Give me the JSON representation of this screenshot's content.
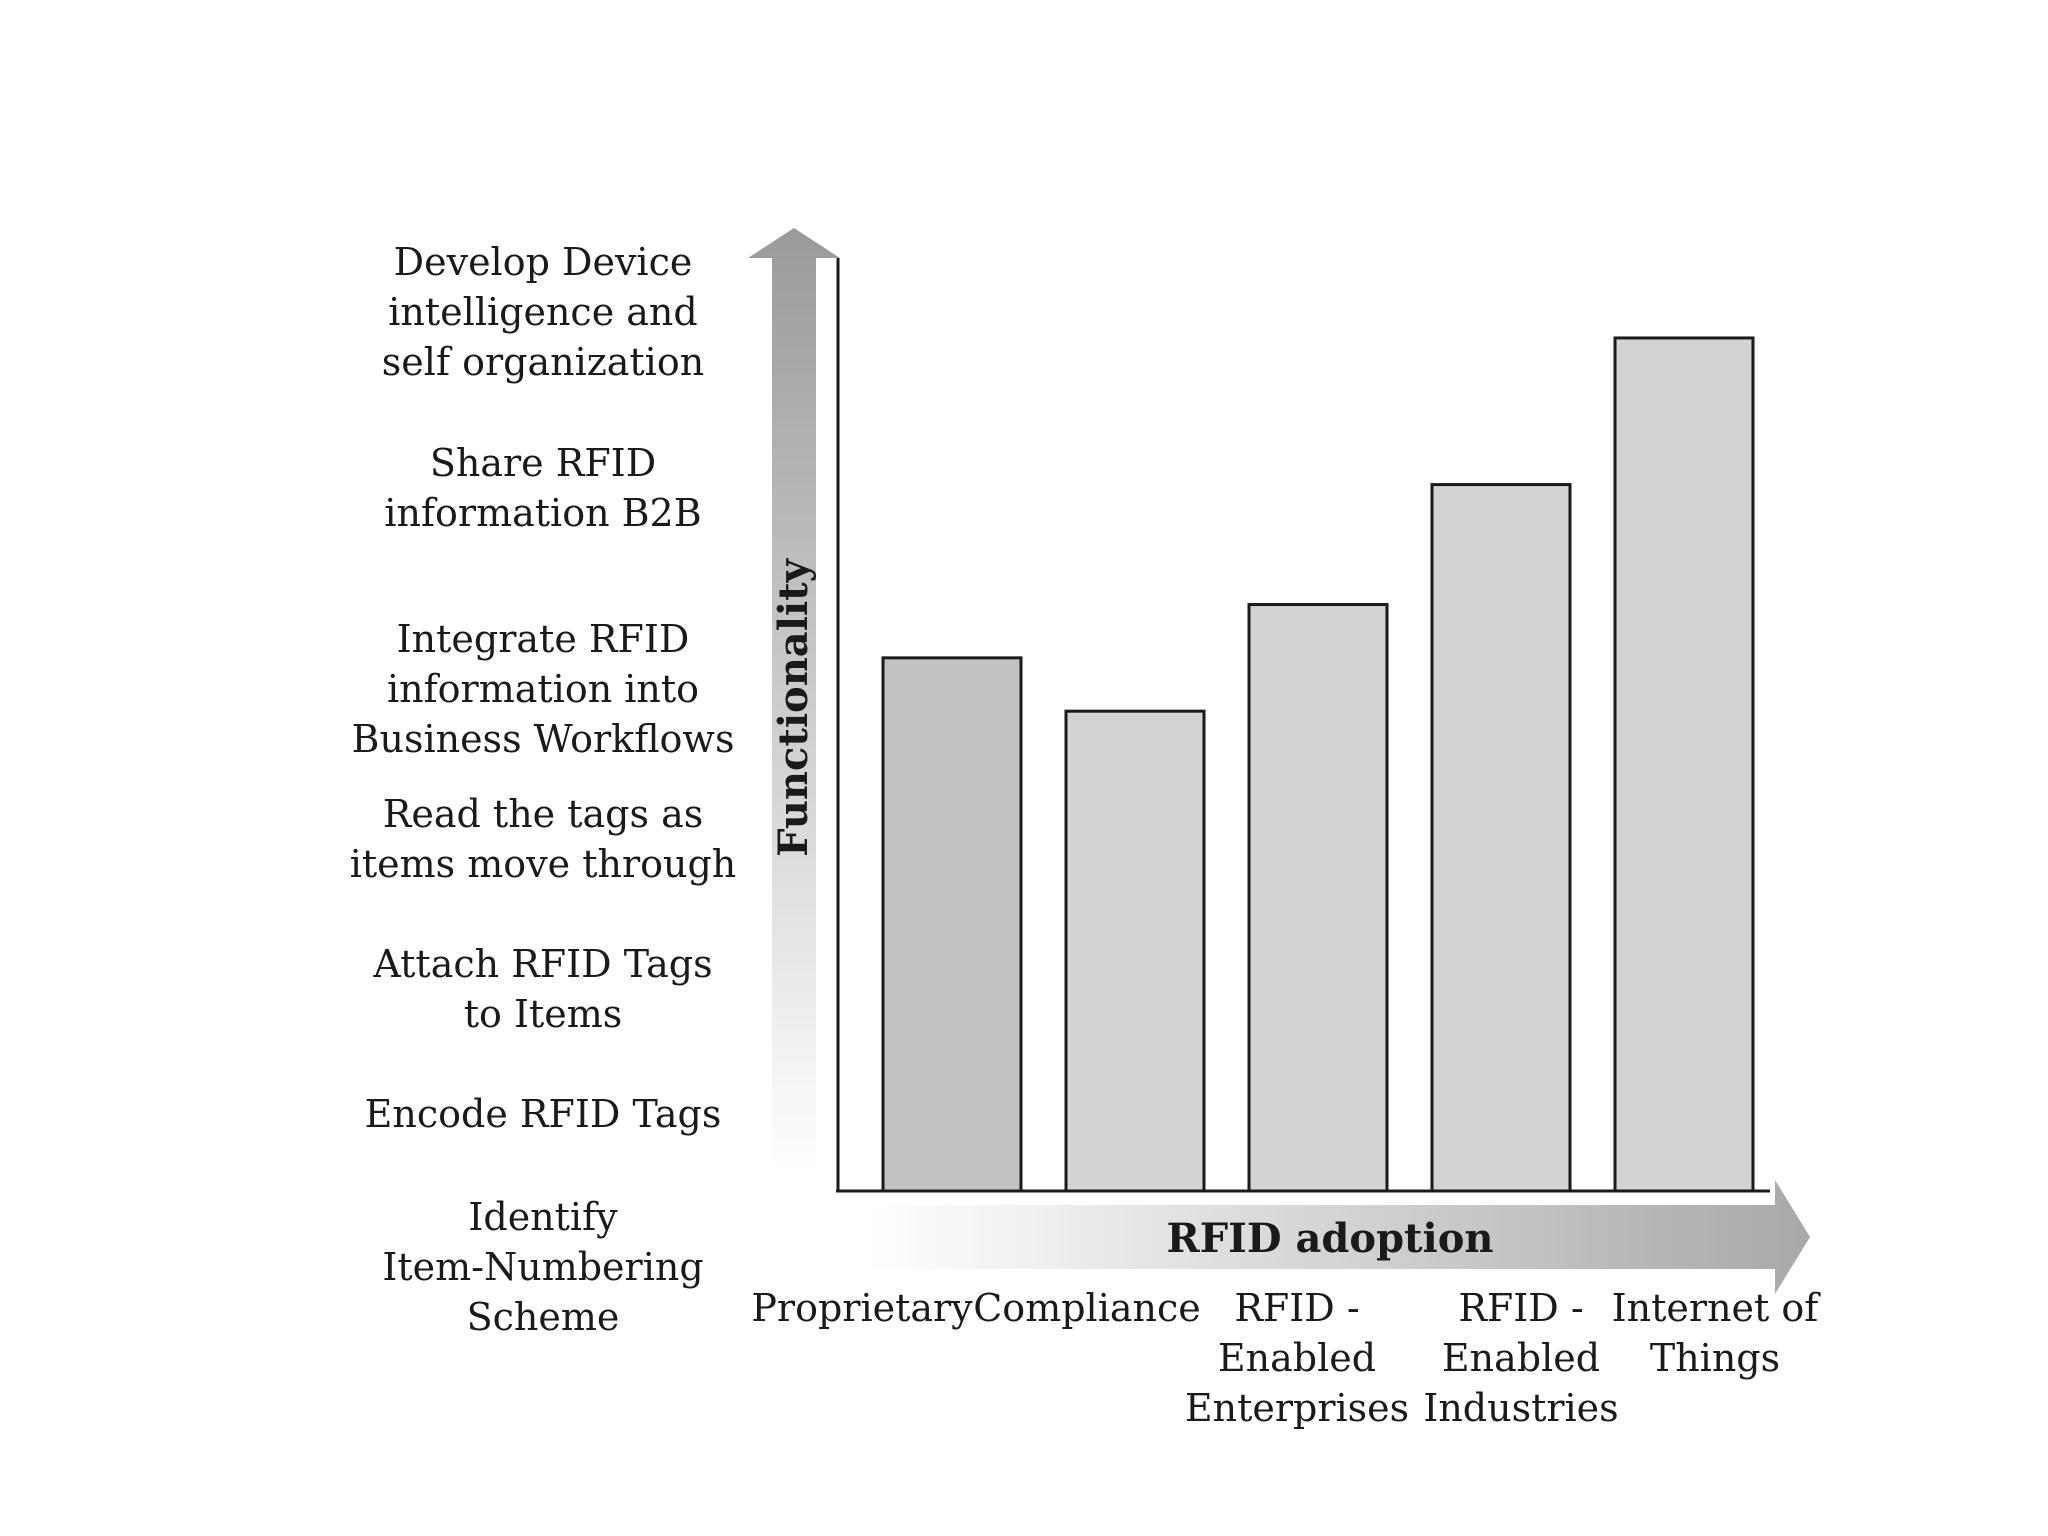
{
  "chart_data": {
    "type": "bar",
    "xlabel": "RFID adoption",
    "ylabel": "Functionality",
    "y_levels": [
      "Identify Item-Numbering Scheme",
      "Encode RFID Tags",
      "Attach RFID Tags to Items",
      "Read the tags as items move through",
      "Integrate RFID information into Business Workflows",
      "Share RFID information B2B",
      "Develop Device intelligence and self organization"
    ],
    "y_level_lines": [
      [
        "Identify",
        "Item-Numbering",
        "Scheme"
      ],
      [
        "Encode RFID Tags"
      ],
      [
        "Attach RFID Tags",
        "to Items"
      ],
      [
        "Read the tags as",
        "items move through"
      ],
      [
        "Integrate RFID",
        "information into",
        "Business Workflows"
      ],
      [
        "Share RFID",
        "information B2B"
      ],
      [
        "Develop Device",
        "intelligence and",
        "self organization"
      ]
    ],
    "categories": [
      "Proprietary",
      "Compliance",
      "RFID - Enabled Enterprises",
      "RFID - Enabled Industries",
      "Internet of Things"
    ],
    "category_lines": [
      [
        "Proprietary"
      ],
      [
        "Compliance"
      ],
      [
        "RFID -",
        "Enabled",
        "Enterprises"
      ],
      [
        "RFID -",
        "Enabled",
        "Industries"
      ],
      [
        "Internet of",
        "Things"
      ]
    ],
    "values": [
      4.0,
      3.6,
      4.4,
      5.3,
      6.4
    ],
    "ylim": [
      0,
      7
    ],
    "grid": false,
    "legend": "none",
    "colors": {
      "bar_first": "#c2c2c2",
      "bar": "#d3d3d3",
      "bar_stroke": "#1a1a1a",
      "axis": "#1a1a1a",
      "arrow_dark": "#9a9a9a",
      "arrow_light": "#ffffff"
    }
  }
}
